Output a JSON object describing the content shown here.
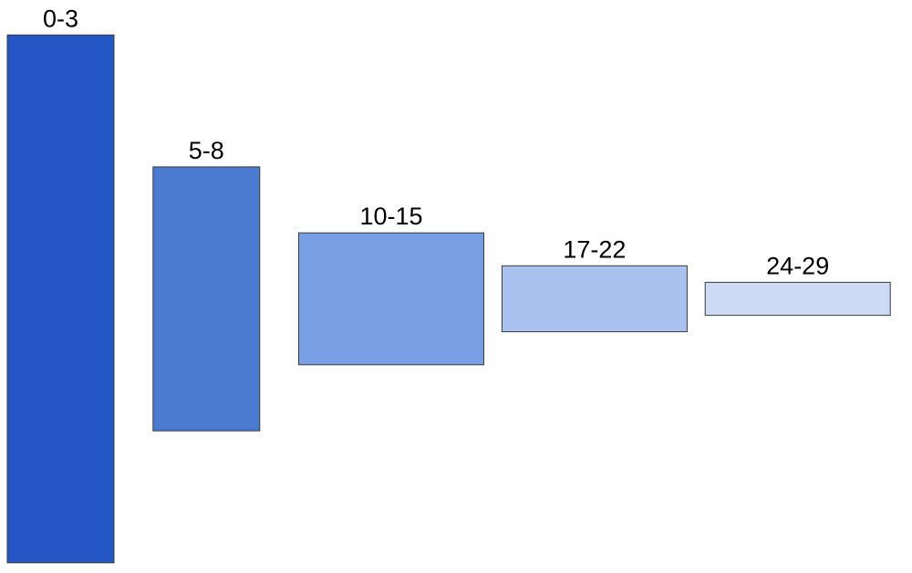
{
  "chart_data": {
    "type": "bar",
    "title": "",
    "xlabel": "",
    "ylabel": "",
    "grid": false,
    "legend": "none",
    "bars": [
      {
        "label": "0-3",
        "range": [
          0,
          3
        ],
        "value": 100,
        "color": "#2456c6"
      },
      {
        "label": "5-8",
        "range": [
          5,
          8
        ],
        "value": 50,
        "color": "#4a7bd1"
      },
      {
        "label": "10-15",
        "range": [
          10,
          15
        ],
        "value": 25,
        "color": "#789fe4"
      },
      {
        "label": "17-22",
        "range": [
          17,
          22
        ],
        "value": 12.5,
        "color": "#a9c2ef"
      },
      {
        "label": "24-29",
        "range": [
          24,
          29
        ],
        "value": 6.25,
        "color": "#cddbf5"
      }
    ]
  }
}
